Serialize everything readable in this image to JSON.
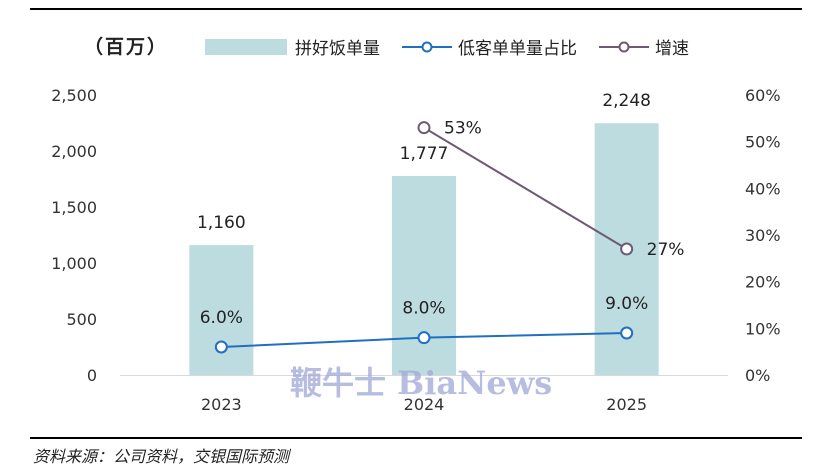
{
  "unit_label": "（百万）",
  "legend": {
    "bar": "拼好饭单量",
    "line1": "低客单单量占比",
    "line2": "增速"
  },
  "source": "资料来源：公司资料，交银国际预测",
  "watermark": "鞭牛士 BiaNews",
  "colors": {
    "bar": "#bcdcdf",
    "line1": "#1f6fc2",
    "line2": "#6e5a73"
  },
  "chart_data": {
    "type": "bar",
    "categories": [
      "2023",
      "2024",
      "2025"
    ],
    "ylim": [
      0,
      2500
    ],
    "y2lim": [
      0,
      60
    ],
    "y_ticks": [
      "0",
      "500",
      "1,000",
      "1,500",
      "2,000",
      "2,500"
    ],
    "y2_ticks": [
      "0%",
      "10%",
      "20%",
      "30%",
      "40%",
      "50%",
      "60%"
    ],
    "series": [
      {
        "name": "拼好饭单量",
        "type": "bar",
        "axis": "left",
        "values": [
          1160,
          1777,
          2248
        ],
        "labels": [
          "1,160",
          "1,777",
          "2,248"
        ]
      },
      {
        "name": "低客单单量占比",
        "type": "line",
        "axis": "right",
        "values": [
          6.0,
          8.0,
          9.0
        ],
        "labels": [
          "6.0%",
          "8.0%",
          "9.0%"
        ]
      },
      {
        "name": "增速",
        "type": "line",
        "axis": "right",
        "values": [
          null,
          53,
          27
        ],
        "labels": [
          "",
          "53%",
          "27%"
        ]
      }
    ]
  }
}
